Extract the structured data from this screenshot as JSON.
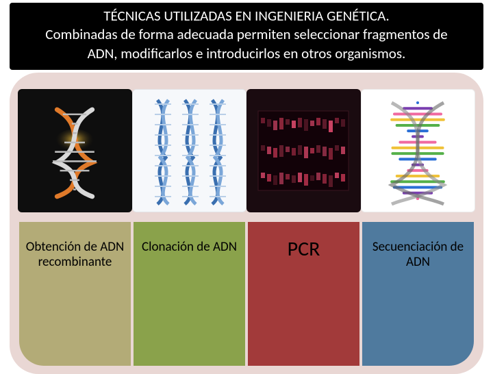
{
  "header": {
    "title": "TÉCNICAS UTILIZADAS EN INGENIERIA GENÉTICA.",
    "subtitle": "Combinadas de forma adecuada permiten seleccionar fragmentos de ADN, modificarlos e introducirlos en otros organismos."
  },
  "layout": {
    "background_rounded_color": "#e9d7d4",
    "background_corner_radius": 42
  },
  "columns": [
    {
      "key": "recombinante",
      "label": "Obtención de ADN recombinante",
      "label_bg": "#b3ab77",
      "label_fontsize": 19,
      "image_bg": "#0e0e0e",
      "image_kind": "helix-single",
      "helix_colors": [
        "#e07a2a",
        "#d9d9d9"
      ],
      "accent": "#f6c33a"
    },
    {
      "key": "clonacion",
      "label": "Clonación de ADN",
      "label_bg": "#8aa24b",
      "label_fontsize": 19,
      "image_bg": "#f6f8fb",
      "image_kind": "helix-triple",
      "helix_colors": [
        "#3a6fb0",
        "#7aa6d8"
      ],
      "accent": "#b9cfe8"
    },
    {
      "key": "pcr",
      "label": "PCR",
      "label_bg": "#a23a3a",
      "label_fontsize": 30,
      "image_bg": "#1a0b10",
      "image_kind": "gel-bands",
      "band_colors": [
        "#b0304a",
        "#6b1f30",
        "#d9486a"
      ],
      "accent": "#ff5577"
    },
    {
      "key": "secuenciacion",
      "label": "Secuenciación de ADN",
      "label_bg": "#4f7a9e",
      "label_fontsize": 19,
      "image_bg": "#ffffff",
      "image_kind": "helix-rainbow",
      "helix_colors": [
        "#2a6fd6",
        "#7a3fb0",
        "#f06aa0",
        "#f0c23a",
        "#55b04a"
      ],
      "accent": "#cccccc"
    }
  ]
}
